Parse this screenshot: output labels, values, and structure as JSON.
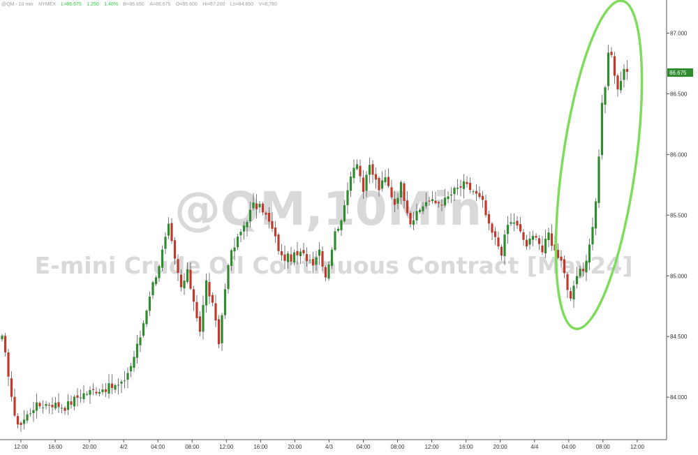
{
  "header": {
    "symbol": "@QM - 10 min",
    "exchange": "NYMEX",
    "last": "L=86.675",
    "change": "1.250",
    "pct": "1.46%",
    "bid": "B=86.650",
    "ask": "A=86.675",
    "open": "O=85.600",
    "high": "Hi=87.200",
    "low": "Lo=84.650",
    "volume": "V=6,780"
  },
  "watermark": {
    "line1": "@QM,10Min",
    "line2": "E-mini Crude Oil Continuous Contract [May24]"
  },
  "colors": {
    "up": "#2e8b2e",
    "down": "#c0392b",
    "highlight": "#7ddc5a",
    "last_price": "#2e8b2e"
  },
  "chart_data": {
    "type": "candlestick",
    "title": "",
    "xlabel": "",
    "ylabel": "",
    "ylim": [
      83.65,
      87.25
    ],
    "y_ticks": [
      "84.000",
      "84.500",
      "85.000",
      "85.500",
      "86.000",
      "86.500",
      "87.000"
    ],
    "x_ticks": [
      "12:00",
      "16:00",
      "20:00",
      "4/2",
      "04:00",
      "08:00",
      "12:00",
      "16:00",
      "20:00",
      "4/3",
      "04:00",
      "08:00",
      "12:00",
      "16:00",
      "20:00",
      "4/4",
      "04:00",
      "08:00",
      "12:00"
    ],
    "last_price": "86.675",
    "grid": false,
    "highlight": "ellipse around the final rally (4/4 08:00 to 12:00)",
    "anchors": [
      [
        0,
        84.48
      ],
      [
        2,
        84.2
      ],
      [
        4,
        83.82
      ],
      [
        6,
        83.78
      ],
      [
        10,
        83.92
      ],
      [
        15,
        83.95
      ],
      [
        20,
        83.92
      ],
      [
        25,
        84.02
      ],
      [
        30,
        84.06
      ],
      [
        34,
        84.08
      ],
      [
        38,
        84.1
      ],
      [
        41,
        84.26
      ],
      [
        44,
        84.5
      ],
      [
        47,
        84.85
      ],
      [
        50,
        85.1
      ],
      [
        53,
        85.4
      ],
      [
        55,
        85.12
      ],
      [
        57,
        84.9
      ],
      [
        59,
        85.02
      ],
      [
        61,
        84.8
      ],
      [
        63,
        84.55
      ],
      [
        65,
        84.95
      ],
      [
        67,
        84.75
      ],
      [
        69,
        84.45
      ],
      [
        72,
        85.12
      ],
      [
        75,
        85.3
      ],
      [
        77,
        85.42
      ],
      [
        80,
        85.58
      ],
      [
        83,
        85.55
      ],
      [
        86,
        85.38
      ],
      [
        89,
        85.15
      ],
      [
        92,
        85.15
      ],
      [
        95,
        85.18
      ],
      [
        99,
        85.12
      ],
      [
        101,
        85.22
      ],
      [
        103,
        85.0
      ],
      [
        106,
        85.35
      ],
      [
        109,
        85.55
      ],
      [
        111,
        85.85
      ],
      [
        113,
        85.95
      ],
      [
        115,
        85.7
      ],
      [
        117,
        85.9
      ],
      [
        120,
        85.72
      ],
      [
        122,
        85.8
      ],
      [
        125,
        85.6
      ],
      [
        127,
        85.75
      ],
      [
        130,
        85.45
      ],
      [
        132,
        85.5
      ],
      [
        135,
        85.62
      ],
      [
        138,
        85.6
      ],
      [
        141,
        85.62
      ],
      [
        144,
        85.7
      ],
      [
        147,
        85.75
      ],
      [
        150,
        85.7
      ],
      [
        153,
        85.6
      ],
      [
        155,
        85.4
      ],
      [
        157,
        85.3
      ],
      [
        159,
        85.2
      ],
      [
        161,
        85.42
      ],
      [
        163,
        85.45
      ],
      [
        165,
        85.35
      ],
      [
        167,
        85.25
      ],
      [
        170,
        85.35
      ],
      [
        172,
        85.2
      ],
      [
        174,
        85.35
      ],
      [
        176,
        85.2
      ],
      [
        178,
        85.15
      ],
      [
        180,
        84.9
      ],
      [
        181,
        84.78
      ],
      [
        183,
        85.0
      ],
      [
        185,
        85.05
      ],
      [
        187,
        85.25
      ],
      [
        189,
        85.6
      ],
      [
        190,
        86.0
      ],
      [
        191,
        86.4
      ],
      [
        192,
        86.55
      ],
      [
        193,
        86.85
      ],
      [
        194,
        86.8
      ],
      [
        196,
        86.55
      ],
      [
        198,
        86.68
      ]
    ]
  }
}
